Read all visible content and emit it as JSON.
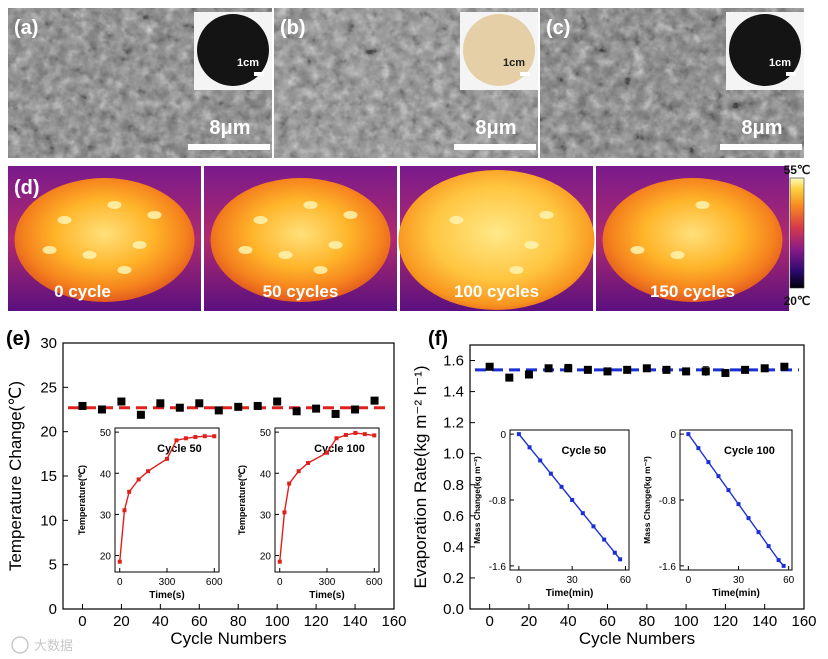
{
  "sem_panels": [
    {
      "label": "(a)",
      "scale_bar": "8μm",
      "inset_scale": "1cm",
      "inset_color": "#141414",
      "texture": "#7d7d7d"
    },
    {
      "label": "(b)",
      "scale_bar": "8μm",
      "inset_scale": "1cm",
      "inset_color": "#e4cfa6",
      "texture": "#8a8a8a"
    },
    {
      "label": "(c)",
      "scale_bar": "8μm",
      "inset_scale": "1cm",
      "inset_color": "#141414",
      "texture": "#7a7a7a"
    }
  ],
  "thermal": {
    "label": "(d)",
    "frames": [
      "0 cycle",
      "50 cycles",
      "100 cycles",
      "150 cycles"
    ],
    "colorbar": {
      "max_label": "55℃",
      "min_label": "20℃"
    }
  },
  "watermark": "大数据",
  "chart_data": [
    {
      "panel": "(e)",
      "type": "scatter",
      "xlabel": "Cycle Numbers",
      "ylabel": "Temperature Change(℃)",
      "xlim": [
        -10,
        160
      ],
      "ylim": [
        0,
        30
      ],
      "xticks": [
        0,
        20,
        40,
        60,
        80,
        100,
        120,
        140,
        160
      ],
      "yticks": [
        0,
        5,
        10,
        15,
        20,
        25,
        30
      ],
      "reference_line": {
        "y": 22.7,
        "color": "#e0201c",
        "style": "dashed"
      },
      "series": [
        {
          "name": "Temperature Change",
          "color": "#000000",
          "x": [
            0,
            10,
            20,
            30,
            40,
            50,
            60,
            70,
            80,
            90,
            100,
            110,
            120,
            130,
            140,
            150
          ],
          "y": [
            22.9,
            22.5,
            23.4,
            21.9,
            23.2,
            22.7,
            23.2,
            22.4,
            22.8,
            22.9,
            23.4,
            22.3,
            22.6,
            22.0,
            22.5,
            23.5
          ]
        }
      ],
      "insets": [
        {
          "title": "Cycle 50",
          "type": "line",
          "xlabel": "Time(s)",
          "ylabel": "Temperature(℃)",
          "xlim": [
            -30,
            630
          ],
          "ylim": [
            16,
            51
          ],
          "xticks": [
            0,
            300,
            600
          ],
          "yticks": [
            20,
            30,
            40,
            50
          ],
          "color": "#e0201c",
          "x": [
            0,
            30,
            60,
            120,
            180,
            300,
            360,
            420,
            480,
            540,
            600
          ],
          "y": [
            18.5,
            31,
            35.5,
            38.5,
            40.5,
            43.5,
            48,
            48.5,
            48.8,
            49,
            49
          ]
        },
        {
          "title": "Cycle 100",
          "type": "line",
          "xlabel": "Time(s)",
          "ylabel": "Temperature(℃)",
          "xlim": [
            -30,
            630
          ],
          "ylim": [
            16,
            51
          ],
          "xticks": [
            0,
            300,
            600
          ],
          "yticks": [
            20,
            30,
            40,
            50
          ],
          "color": "#e0201c",
          "x": [
            0,
            30,
            60,
            120,
            180,
            300,
            360,
            420,
            480,
            540,
            600
          ],
          "y": [
            18.5,
            30.5,
            37.5,
            40.5,
            42.5,
            45,
            48.5,
            49.3,
            49.8,
            49.5,
            49.2
          ]
        }
      ]
    },
    {
      "panel": "(f)",
      "type": "scatter",
      "xlabel": "Cycle Numbers",
      "ylabel": "Evaporation Rate(kg m⁻² h⁻¹)",
      "xlim": [
        -10,
        160
      ],
      "ylim": [
        0,
        1.7
      ],
      "xticks": [
        0,
        20,
        40,
        60,
        80,
        100,
        120,
        140,
        160
      ],
      "yticks": [
        0,
        0.2,
        0.4,
        0.6,
        0.8,
        1.0,
        1.2,
        1.4,
        1.6
      ],
      "ytick_labels": [
        "0.0",
        "0.2",
        "0.4",
        "0.6",
        "0.8",
        "1.0",
        "1.2",
        "1.4",
        "1.6"
      ],
      "reference_line": {
        "y": 1.54,
        "color": "#1a2fd6",
        "style": "dashed"
      },
      "series": [
        {
          "name": "Evaporation Rate",
          "color": "#000000",
          "x": [
            0,
            10,
            20,
            30,
            40,
            50,
            60,
            70,
            80,
            90,
            100,
            110,
            120,
            130,
            140,
            150
          ],
          "y": [
            1.56,
            1.49,
            1.51,
            1.55,
            1.55,
            1.54,
            1.53,
            1.54,
            1.55,
            1.54,
            1.53,
            1.53,
            1.52,
            1.54,
            1.55,
            1.56
          ],
          "err": [
            0.02,
            0.015,
            0.015,
            0.01,
            0.025,
            0.015,
            0.01,
            0.01,
            0.01,
            0.01,
            0.01,
            0.03,
            0.01,
            0.01,
            0.01,
            0.015
          ]
        }
      ],
      "insets": [
        {
          "title": "Cycle 50",
          "type": "line",
          "xlabel": "Time(min)",
          "ylabel": "Mass Change(kg m⁻²)",
          "xlim": [
            -5,
            62
          ],
          "ylim": [
            -1.65,
            0.05
          ],
          "xticks": [
            0,
            30,
            60
          ],
          "yticks": [
            0,
            -0.8,
            -1.6
          ],
          "ytick_labels": [
            "0",
            "-0.8",
            "-1.6"
          ],
          "color": "#1a2fd6",
          "x": [
            0,
            6,
            12,
            18,
            24,
            30,
            36,
            42,
            48,
            54,
            57
          ],
          "y": [
            0,
            -0.16,
            -0.32,
            -0.48,
            -0.64,
            -0.8,
            -0.96,
            -1.12,
            -1.28,
            -1.44,
            -1.52
          ]
        },
        {
          "title": "Cycle 100",
          "type": "line",
          "xlabel": "Time(min)",
          "ylabel": "Mass Change(kg m⁻²)",
          "xlim": [
            -5,
            62
          ],
          "ylim": [
            -1.65,
            0.05
          ],
          "xticks": [
            0,
            30,
            60
          ],
          "yticks": [
            0,
            -0.8,
            -1.6
          ],
          "ytick_labels": [
            "0",
            "-0.8",
            "-1.6"
          ],
          "color": "#1a2fd6",
          "x": [
            0,
            6,
            12,
            18,
            24,
            30,
            36,
            42,
            48,
            54,
            57
          ],
          "y": [
            0,
            -0.17,
            -0.34,
            -0.51,
            -0.68,
            -0.85,
            -1.02,
            -1.19,
            -1.36,
            -1.53,
            -1.6
          ]
        }
      ]
    }
  ]
}
